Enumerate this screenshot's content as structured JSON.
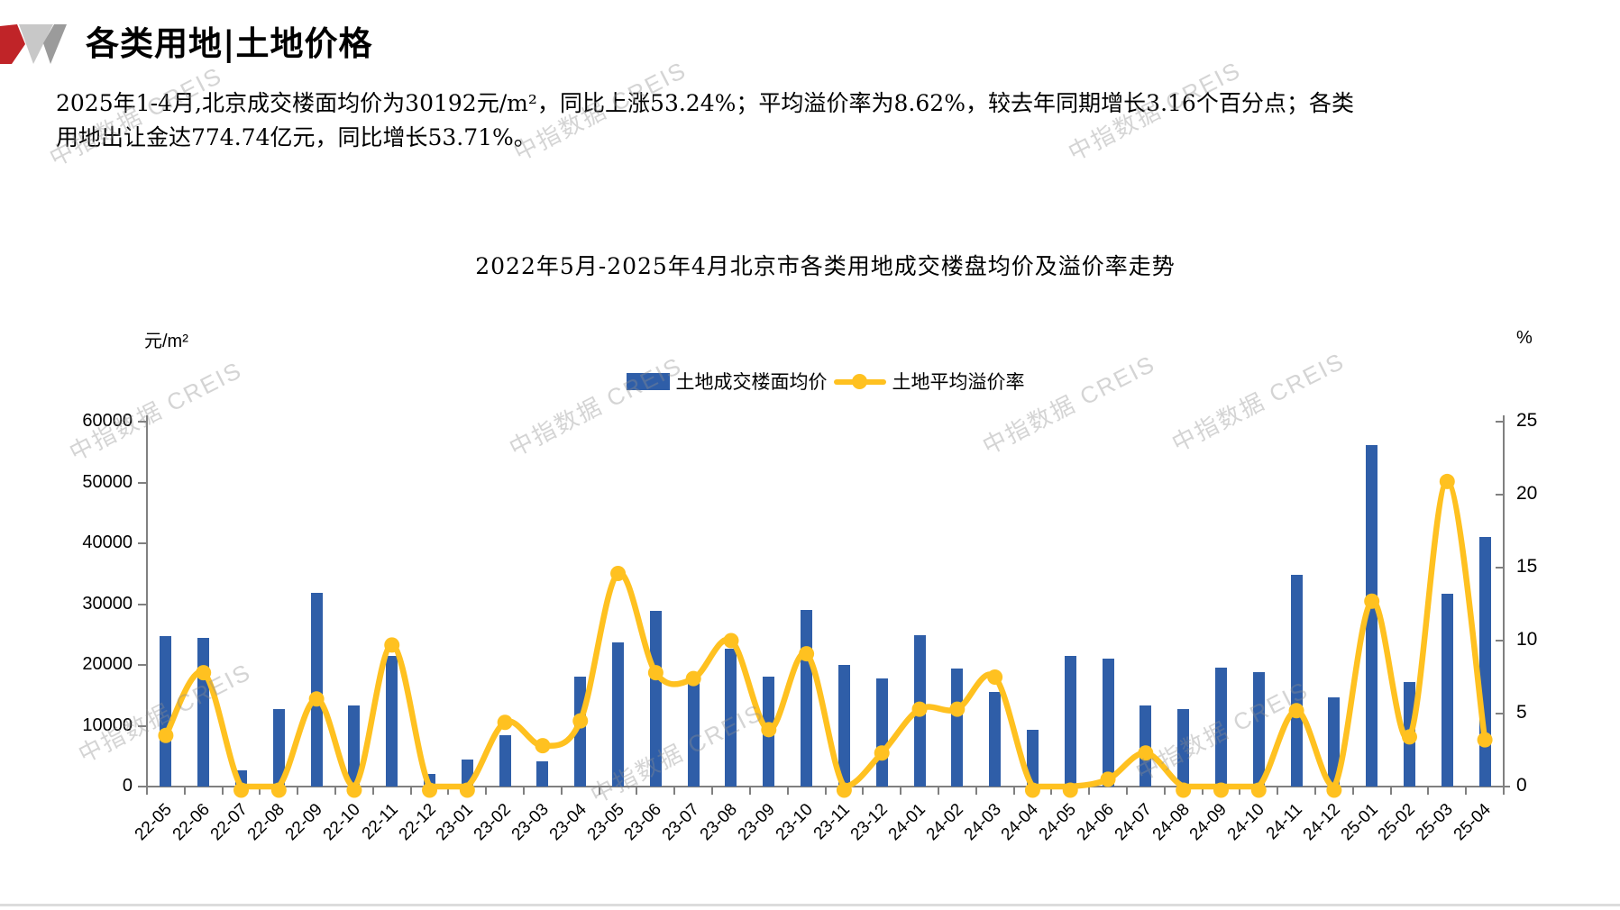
{
  "header": {
    "title": "各类用地|土地价格"
  },
  "summary": {
    "text": "2025年1-4月,北京成交楼面均价为30192元/m²，同比上涨53.24%；平均溢价率为8.62%，较去年同期增长3.16个百分点；各类用地出让金达774.74亿元，同比增长53.71%。"
  },
  "watermark": {
    "text": "中指数据 CREIS"
  },
  "colors": {
    "bar_blue": "#2F5EA8",
    "line_yellow": "#FFC120",
    "logo_red": "#C02428",
    "logo_gray_light": "#C8C8C8",
    "logo_gray_mid": "#9B9B9B",
    "axis_gray": "#808080"
  },
  "chart_data": {
    "type": "bar",
    "title": "2022年5月-2025年4月北京市各类用地成交楼盘均价及溢价率走势",
    "grid": false,
    "legend_position": "top",
    "categories": [
      "22-05",
      "22-06",
      "22-07",
      "22-08",
      "22-09",
      "22-10",
      "22-11",
      "22-12",
      "23-01",
      "23-02",
      "23-03",
      "23-04",
      "23-05",
      "23-06",
      "23-07",
      "23-08",
      "23-09",
      "23-10",
      "23-11",
      "23-12",
      "24-01",
      "24-02",
      "24-03",
      "24-04",
      "24-05",
      "24-06",
      "24-07",
      "24-08",
      "24-09",
      "24-10",
      "24-11",
      "24-12",
      "25-01",
      "25-02",
      "25-03",
      "25-04"
    ],
    "series": [
      {
        "name": "土地成交楼面均价",
        "type": "bar",
        "axis": "left",
        "values": [
          24800,
          24400,
          2700,
          12700,
          31800,
          13300,
          21500,
          2000,
          4500,
          8500,
          4200,
          18100,
          23700,
          28900,
          17900,
          22700,
          18000,
          29000,
          20000,
          17800,
          24900,
          19400,
          15600,
          9400,
          21500,
          21000,
          13400,
          12700,
          19600,
          18800,
          34800,
          14700,
          56200,
          17200,
          31700,
          41100
        ]
      },
      {
        "name": "土地平均溢价率",
        "type": "line",
        "axis": "right",
        "values": [
          3.5,
          7.8,
          0,
          0,
          6.0,
          0,
          9.7,
          0,
          0,
          4.4,
          2.8,
          4.5,
          14.6,
          7.8,
          7.4,
          10.0,
          3.9,
          9.1,
          0,
          2.3,
          5.3,
          5.3,
          7.5,
          0,
          0,
          0.5,
          2.3,
          0,
          0,
          0,
          5.2,
          0,
          12.7,
          3.4,
          20.9,
          3.2
        ]
      }
    ],
    "left_axis": {
      "unit": "元/m²",
      "min": 0,
      "max": 60000,
      "step": 10000
    },
    "right_axis": {
      "unit": "%",
      "min": 0,
      "max": 25,
      "step": 5
    }
  }
}
